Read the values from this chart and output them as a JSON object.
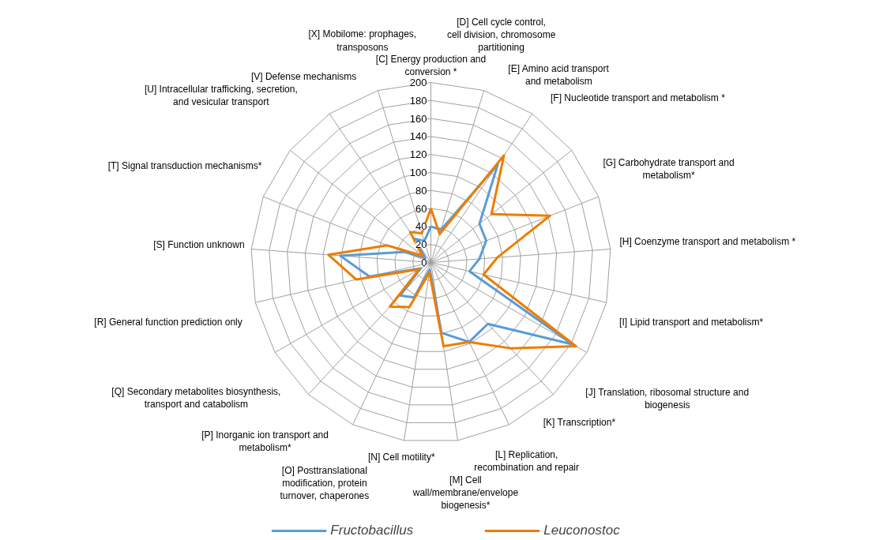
{
  "chart_data": {
    "type": "radar",
    "categories": [
      "[C] Energy production and conversion *",
      "[D] Cell cycle control, cell division, chromosome partitioning",
      "[E] Amino acid transport and metabolism",
      "[F] Nucleotide transport and metabolism *",
      "[G] Carbohydrate transport and metabolism*",
      "[H] Coenzyme transport and metabolism *",
      "[I] Lipid transport and metabolism*",
      "[J] Translation, ribosomal structure and biogenesis",
      "[K] Transcription*",
      "[L] Replication, recombination and repair",
      "[M] Cell wall/membrane/envelope biogenesis*",
      "[N] Cell motility*",
      "[O] Posttranslational modification, protein turnover, chaperones",
      "[P] Inorganic ion transport and metabolism*",
      "[Q] Secondary metabolites biosynthesis, transport and catabolism",
      "[R] General function prediction only",
      "[S] Function unknown",
      "[T] Signal transduction mechanisms*",
      "[U] Intracellular trafficking, secretion, and vesicular transport",
      "[V] Defense mechanisms",
      "[X] Mobilome: prophages, transposons"
    ],
    "series": [
      {
        "name": "Fructobacillus",
        "color": "#5b9bd5",
        "values": [
          40,
          38,
          132,
          69,
          66,
          54,
          44,
          182,
          93,
          98,
          79,
          8,
          43,
          50,
          13,
          70,
          101,
          32,
          8,
          32,
          25
        ]
      },
      {
        "name": "Leuconostoc",
        "color": "#ed7d00",
        "values": [
          60,
          33,
          144,
          86,
          142,
          74,
          60,
          186,
          130,
          98,
          94,
          11,
          55,
          67,
          15,
          85,
          114,
          52,
          12,
          41,
          34
        ]
      }
    ],
    "ylim": [
      0,
      200
    ],
    "yticks": [
      0,
      20,
      40,
      60,
      80,
      100,
      120,
      140,
      160,
      180,
      200
    ],
    "grid": true,
    "legend": "bottom"
  }
}
